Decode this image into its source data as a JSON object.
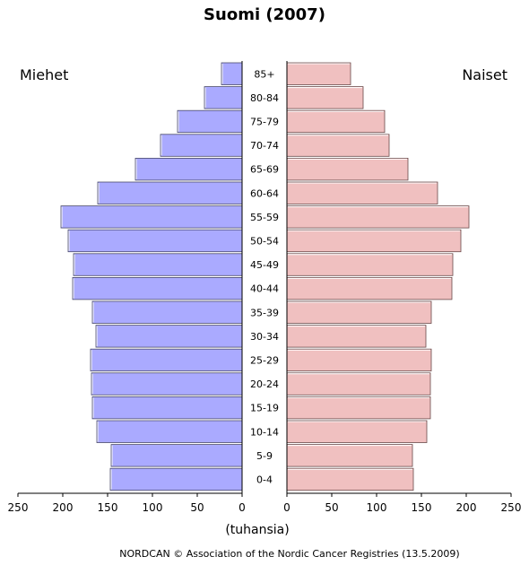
{
  "chart_data": {
    "type": "bar",
    "title": "Suomi (2007)",
    "left_label": "Miehet",
    "right_label": "Naiset",
    "categories": [
      "85+",
      "80-84",
      "75-79",
      "70-74",
      "65-69",
      "60-64",
      "55-59",
      "50-54",
      "45-49",
      "40-44",
      "35-39",
      "30-34",
      "25-29",
      "20-24",
      "15-19",
      "10-14",
      "5-9",
      "0-4"
    ],
    "series": [
      {
        "name": "Miehet",
        "color": "#aaaaff",
        "values": [
          23,
          42,
          72,
          91,
          119,
          161,
          202,
          194,
          188,
          189,
          167,
          163,
          169,
          168,
          167,
          162,
          146,
          147
        ]
      },
      {
        "name": "Naiset",
        "color": "#f0c0c0",
        "values": [
          71,
          85,
          109,
          114,
          135,
          168,
          203,
          194,
          185,
          184,
          161,
          155,
          161,
          160,
          160,
          156,
          140,
          141
        ]
      }
    ],
    "xlim": [
      0,
      250
    ],
    "x_ticks_left": [
      "250",
      "200",
      "150",
      "100",
      "50",
      "0"
    ],
    "x_ticks_right": [
      "0",
      "50",
      "100",
      "150",
      "200",
      "250"
    ],
    "xlabel": "(tuhansia)",
    "grid": false
  },
  "footer": "NORDCAN © Association of the Nordic Cancer Registries (13.5.2009)"
}
